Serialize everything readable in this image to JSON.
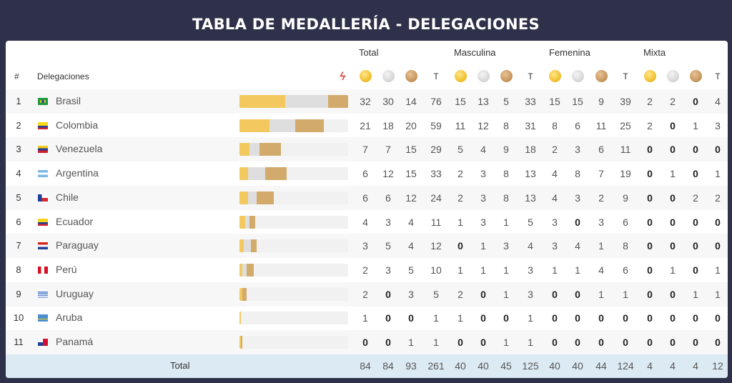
{
  "title": "TABLA DE MEDALLERÍA - DELEGACIONES",
  "header": {
    "hash": "#",
    "delegations": "Delegaciones",
    "groups": [
      "Total",
      "Masculina",
      "Femenina",
      "Mixta"
    ],
    "t_label": "T"
  },
  "countries": [
    {
      "rank": "1",
      "name": "Brasil",
      "flag": "brazil-flag-icon",
      "values": [
        32,
        30,
        14,
        76,
        15,
        13,
        5,
        33,
        15,
        15,
        9,
        39,
        2,
        2,
        0,
        4
      ]
    },
    {
      "rank": "2",
      "name": "Colombia",
      "flag": "colombia-flag-icon",
      "values": [
        21,
        18,
        20,
        59,
        11,
        12,
        8,
        31,
        8,
        6,
        11,
        25,
        2,
        0,
        1,
        3
      ]
    },
    {
      "rank": "3",
      "name": "Venezuela",
      "flag": "venezuela-flag-icon",
      "values": [
        7,
        7,
        15,
        29,
        5,
        4,
        9,
        18,
        2,
        3,
        6,
        11,
        0,
        0,
        0,
        0
      ]
    },
    {
      "rank": "4",
      "name": "Argentina",
      "flag": "argentina-flag-icon",
      "values": [
        6,
        12,
        15,
        33,
        2,
        3,
        8,
        13,
        4,
        8,
        7,
        19,
        0,
        1,
        0,
        1
      ]
    },
    {
      "rank": "5",
      "name": "Chile",
      "flag": "chile-flag-icon",
      "values": [
        6,
        6,
        12,
        24,
        2,
        3,
        8,
        13,
        4,
        3,
        2,
        9,
        0,
        0,
        2,
        2
      ]
    },
    {
      "rank": "6",
      "name": "Ecuador",
      "flag": "ecuador-flag-icon",
      "values": [
        4,
        3,
        4,
        11,
        1,
        3,
        1,
        5,
        3,
        0,
        3,
        6,
        0,
        0,
        0,
        0
      ]
    },
    {
      "rank": "7",
      "name": "Paraguay",
      "flag": "paraguay-flag-icon",
      "values": [
        3,
        5,
        4,
        12,
        0,
        1,
        3,
        4,
        3,
        4,
        1,
        8,
        0,
        0,
        0,
        0
      ]
    },
    {
      "rank": "8",
      "name": "Perú",
      "flag": "peru-flag-icon",
      "values": [
        2,
        3,
        5,
        10,
        1,
        1,
        1,
        3,
        1,
        1,
        4,
        6,
        0,
        1,
        0,
        1
      ]
    },
    {
      "rank": "9",
      "name": "Uruguay",
      "flag": "uruguay-flag-icon",
      "values": [
        2,
        0,
        3,
        5,
        2,
        0,
        1,
        3,
        0,
        0,
        1,
        1,
        0,
        0,
        1,
        1
      ]
    },
    {
      "rank": "10",
      "name": "Aruba",
      "flag": "aruba-flag-icon",
      "values": [
        1,
        0,
        0,
        1,
        1,
        0,
        0,
        1,
        0,
        0,
        0,
        0,
        0,
        0,
        0,
        0
      ]
    },
    {
      "rank": "11",
      "name": "Panamá",
      "flag": "panama-flag-icon",
      "values": [
        0,
        0,
        1,
        1,
        0,
        0,
        1,
        1,
        0,
        0,
        0,
        0,
        0,
        0,
        0,
        0
      ]
    }
  ],
  "totals": {
    "label": "Total",
    "values": [
      84,
      84,
      93,
      261,
      40,
      40,
      45,
      125,
      40,
      40,
      44,
      124,
      4,
      4,
      4,
      12
    ]
  },
  "colors": {
    "gold": "#f3c95f",
    "silver": "#dedede",
    "bronze": "#d2ab6c",
    "total_row": "#dceaf3",
    "frame": "#2e3149"
  }
}
